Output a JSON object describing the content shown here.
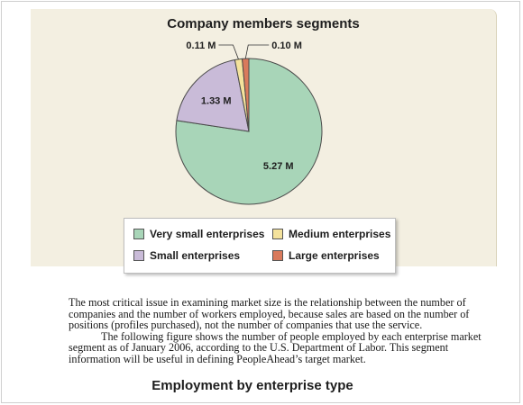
{
  "chart_data": {
    "type": "pie",
    "title": "Company members segments",
    "slices": [
      {
        "name": "Very small enterprises",
        "value": 5.27,
        "label": "5.27 M",
        "color": "#a8d5b8"
      },
      {
        "name": "Small enterprises",
        "value": 1.33,
        "label": "1.33 M",
        "color": "#c9bbd8"
      },
      {
        "name": "Medium enterprises",
        "value": 0.11,
        "label": "0.11 M",
        "color": "#f4e29c"
      },
      {
        "name": "Large enterprises",
        "value": 0.1,
        "label": "0.10 M",
        "color": "#d97a5c"
      }
    ],
    "legend_position": "bottom"
  },
  "legend": {
    "very_small": "Very small enterprises",
    "small": "Small enterprises",
    "medium": "Medium enterprises",
    "large": "Large enterprises"
  },
  "body": {
    "paragraph1": "The most critical issue in examining market size is the relationship between the number of companies and the number of workers employed, because sales are based on the number of positions (profiles purchased), not the number of companies that use the service.",
    "paragraph2": "The following figure shows the number of people employed by each enterprise market segment as of January 2006, according to the U.S. Department of Labor. This segment information will be useful in defining PeopleAhead’s target market."
  },
  "next_chart_title": "Employment by enterprise type"
}
